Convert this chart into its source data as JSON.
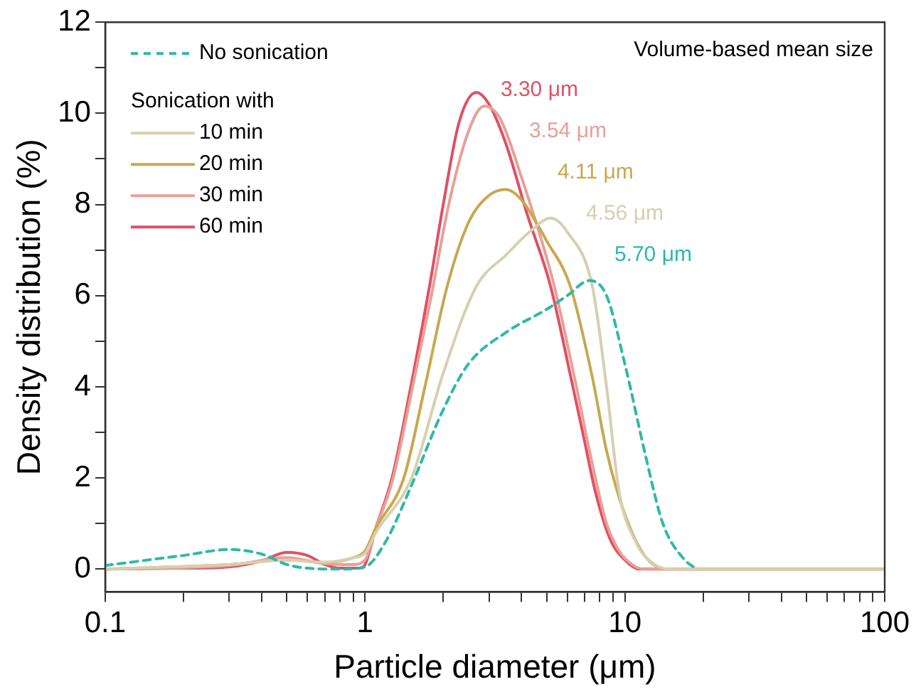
{
  "chart_data": {
    "type": "line",
    "xlabel": "Particle diameter (μm)",
    "ylabel": "Density distribution (%)",
    "legend_title": "Sonication with",
    "legend": "top left",
    "grid": false,
    "log": "x",
    "marker": "none",
    "xlim": [
      0.1,
      100
    ],
    "xticks": [
      0.1,
      {
        "value": 0.2,
        "label": null
      },
      {
        "value": 0.3,
        "label": null
      },
      {
        "value": 0.4,
        "label": null
      },
      {
        "value": 0.5,
        "label": null
      },
      {
        "value": 0.6,
        "label": null
      },
      {
        "value": 0.7,
        "label": null
      },
      {
        "value": 0.8,
        "label": null
      },
      {
        "value": 0.9,
        "label": null
      },
      1,
      {
        "value": 2,
        "label": null
      },
      {
        "value": 3,
        "label": null
      },
      {
        "value": 4,
        "label": null
      },
      {
        "value": 5,
        "label": null
      },
      {
        "value": 6,
        "label": null
      },
      {
        "value": 7,
        "label": null
      },
      {
        "value": 8,
        "label": null
      },
      {
        "value": 9,
        "label": null
      },
      10,
      {
        "value": 20,
        "label": null
      },
      {
        "value": 30,
        "label": null
      },
      {
        "value": 40,
        "label": null
      },
      {
        "value": 50,
        "label": null
      },
      {
        "value": 60,
        "label": null
      },
      {
        "value": 70,
        "label": null
      },
      {
        "value": 80,
        "label": null
      },
      {
        "value": 90,
        "label": null
      },
      100
    ],
    "ylim": [
      -0.5,
      12
    ],
    "yticks": [
      0,
      {
        "value": 1,
        "label": null
      },
      2,
      {
        "value": 3,
        "label": null
      },
      4,
      {
        "value": 5,
        "label": null
      },
      6,
      {
        "value": 7,
        "label": null
      },
      8,
      {
        "value": 9,
        "label": null
      },
      10,
      {
        "value": 11,
        "label": null
      },
      12
    ],
    "annotations": [
      "Volume-based mean size",
      "3.30 μm",
      "3.54 μm",
      "4.11 μm",
      "4.56 μm",
      "5.70 μm"
    ],
    "series": [
      {
        "name": "No sonication",
        "color": "#2fb8a8",
        "line_style": "dashed",
        "x": [
          0.1,
          0.2,
          0.3,
          0.4,
          0.5,
          0.6,
          0.8,
          1.0,
          1.2,
          1.5,
          2.0,
          2.5,
          3.5,
          5.0,
          6.0,
          7.3,
          8.5,
          10,
          12,
          14,
          17,
          19
        ],
        "values": [
          0.08,
          0.3,
          0.43,
          0.33,
          0.1,
          0.02,
          0,
          0.05,
          0.6,
          1.8,
          3.5,
          4.5,
          5.2,
          5.7,
          6.0,
          6.33,
          6.0,
          4.5,
          2.5,
          1.0,
          0.2,
          0
        ]
      },
      {
        "name": "10 min",
        "color": "#d8cfb0",
        "x": [
          0.1,
          0.3,
          0.5,
          0.7,
          0.9,
          1.0,
          1.1,
          1.51,
          2.0,
          2.68,
          3.5,
          4.3,
          5.18,
          6.0,
          7.5,
          8.5,
          9.5,
          11,
          13,
          15,
          100
        ],
        "values": [
          0,
          0.1,
          0.2,
          0.15,
          0.25,
          0.35,
          0.8,
          2,
          4.3,
          6.2,
          6.9,
          7.4,
          7.7,
          7.4,
          6.2,
          4.0,
          1.7,
          0.6,
          0.1,
          0,
          0
        ]
      },
      {
        "name": "20 min",
        "color": "#c8a850",
        "x": [
          0.1,
          0.3,
          0.5,
          0.7,
          0.9,
          1.0,
          1.1,
          1.41,
          1.7,
          2.07,
          2.5,
          3.0,
          3.49,
          4.0,
          5.0,
          6.17,
          7.5,
          8.5,
          10,
          11.9,
          14.5,
          100
        ],
        "values": [
          0,
          0.1,
          0.2,
          0.15,
          0.25,
          0.4,
          0.9,
          2,
          4,
          6.2,
          7.6,
          8.2,
          8.33,
          8.1,
          7.2,
          6.2,
          4.2,
          2.6,
          1.2,
          0.3,
          0,
          0
        ]
      },
      {
        "name": "30 min",
        "color": "#e8a098",
        "x": [
          0.1,
          0.3,
          0.5,
          0.7,
          0.9,
          1.0,
          1.1,
          1.27,
          1.5,
          1.8,
          2.1,
          2.5,
          2.87,
          3.3,
          4.0,
          5.3,
          6.4,
          7.5,
          8.5,
          9.5,
          11,
          12,
          100
        ],
        "values": [
          0,
          0.08,
          0.25,
          0.12,
          0.1,
          0.2,
          0.9,
          1.9,
          3.8,
          6.0,
          8.0,
          9.6,
          10.16,
          9.9,
          8.6,
          6.3,
          4.2,
          2.3,
          1.0,
          0.4,
          0.05,
          0,
          0
        ]
      },
      {
        "name": "60 min",
        "color": "#e05064",
        "x": [
          0.1,
          0.2,
          0.3,
          0.4,
          0.5,
          0.6,
          0.7,
          0.8,
          0.95,
          1.0,
          1.1,
          1.27,
          1.5,
          1.77,
          2.0,
          2.3,
          2.68,
          3.0,
          3.5,
          4.2,
          5.18,
          6.2,
          7.0,
          7.69,
          8.77,
          10,
          11.4,
          100
        ],
        "values": [
          0,
          0.02,
          0.05,
          0.18,
          0.37,
          0.3,
          0.1,
          0.02,
          0.02,
          0.1,
          0.9,
          2,
          4,
          6.2,
          8,
          9.8,
          10.46,
          10.2,
          9.3,
          7.8,
          6.2,
          4.2,
          2.8,
          1.71,
          0.66,
          0.2,
          0,
          0
        ]
      }
    ]
  }
}
